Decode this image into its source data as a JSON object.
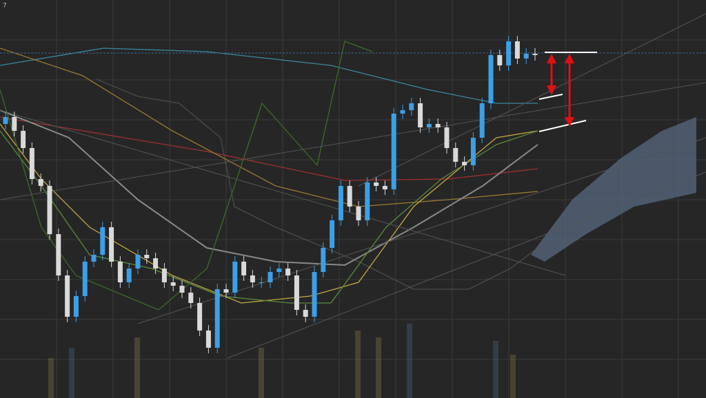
{
  "chart_data": {
    "type": "candlestick",
    "label": "7",
    "ylim": [
      0,
      578
    ],
    "up_color": "#3d9fe6",
    "down_color": "#d9d9d9",
    "open": [
      398,
      408,
      388,
      363,
      318,
      308,
      238,
      178,
      118,
      148,
      198,
      208,
      248,
      198,
      168,
      188,
      208,
      203,
      188,
      168,
      163,
      153,
      138,
      98,
      73,
      158,
      153,
      198,
      178,
      168,
      168,
      183,
      188,
      178,
      128,
      118,
      183,
      218,
      258,
      308,
      278,
      258,
      313,
      308,
      303,
      413,
      418,
      428,
      393,
      398,
      393,
      363,
      343,
      338,
      378,
      428,
      498,
      483,
      518,
      493,
      500
    ],
    "high": [
      416,
      416,
      396,
      371,
      326,
      316,
      246,
      186,
      156,
      206,
      216,
      256,
      256,
      206,
      196,
      216,
      216,
      211,
      196,
      176,
      171,
      161,
      146,
      106,
      166,
      166,
      206,
      206,
      186,
      176,
      191,
      196,
      196,
      186,
      136,
      191,
      226,
      266,
      316,
      316,
      286,
      321,
      321,
      316,
      421,
      426,
      436,
      436,
      406,
      406,
      401,
      371,
      351,
      386,
      436,
      506,
      506,
      526,
      526,
      508,
      508
    ],
    "low": [
      390,
      380,
      355,
      310,
      300,
      230,
      170,
      110,
      110,
      140,
      190,
      200,
      190,
      160,
      160,
      180,
      195,
      180,
      160,
      155,
      145,
      130,
      90,
      65,
      65,
      145,
      145,
      170,
      160,
      160,
      160,
      175,
      170,
      120,
      110,
      110,
      175,
      210,
      250,
      270,
      250,
      250,
      300,
      295,
      295,
      405,
      410,
      385,
      385,
      385,
      355,
      335,
      330,
      330,
      370,
      420,
      475,
      475,
      485,
      485,
      490
    ],
    "close": [
      408,
      388,
      363,
      318,
      308,
      238,
      178,
      118,
      148,
      198,
      208,
      248,
      198,
      168,
      188,
      208,
      203,
      188,
      168,
      163,
      153,
      138,
      98,
      73,
      158,
      153,
      198,
      178,
      168,
      168,
      183,
      188,
      178,
      128,
      118,
      183,
      218,
      258,
      308,
      278,
      258,
      313,
      308,
      303,
      413,
      418,
      428,
      393,
      398,
      393,
      363,
      343,
      338,
      378,
      428,
      498,
      483,
      518,
      493,
      500,
      498
    ]
  }
}
